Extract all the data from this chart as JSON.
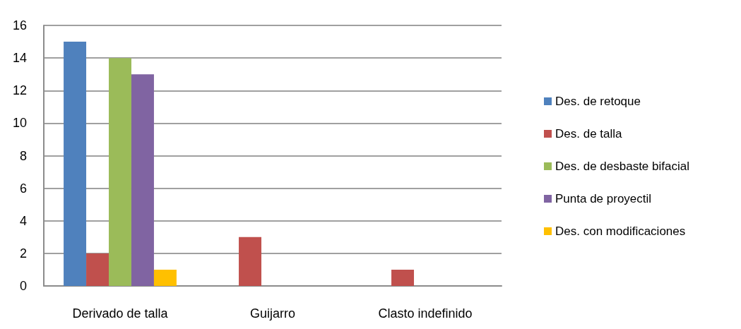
{
  "chart_data": {
    "type": "bar",
    "categories": [
      "Derivado de talla",
      "Guijarro",
      "Clasto indefinido"
    ],
    "series": [
      {
        "name": "Des. de retoque",
        "color": "#4f81bd",
        "values": [
          15,
          null,
          null
        ]
      },
      {
        "name": "Des. de talla",
        "color": "#c0504d",
        "values": [
          2,
          3,
          1
        ]
      },
      {
        "name": "Des. de desbaste bifacial",
        "color": "#9bbb59",
        "values": [
          14,
          null,
          null
        ]
      },
      {
        "name": "Punta de proyectil",
        "color": "#8064a2",
        "values": [
          13,
          null,
          null
        ]
      },
      {
        "name": "Des. con modificaciones",
        "color": "#ffc000",
        "values": [
          1,
          null,
          null
        ]
      }
    ],
    "ylim": [
      0,
      16
    ],
    "yticks": [
      0,
      2,
      4,
      6,
      8,
      10,
      12,
      14,
      16
    ],
    "grid": "y",
    "legend": "right"
  }
}
